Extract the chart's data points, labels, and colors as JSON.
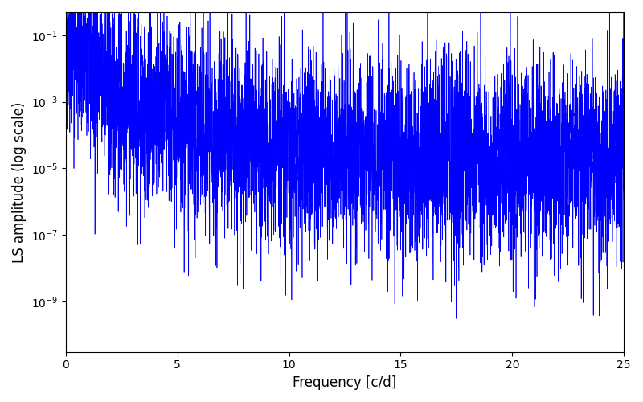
{
  "title": "",
  "xlabel": "Frequency [c/d]",
  "ylabel": "LS amplitude (log scale)",
  "xmin": 0,
  "xmax": 25,
  "ymin": 3e-11,
  "ymax": 0.5,
  "line_color": "#0000ff",
  "line_width": 0.5,
  "background_color": "#ffffff",
  "seed": 42,
  "n_points": 5000,
  "figsize": [
    8.0,
    5.0
  ],
  "dpi": 100
}
